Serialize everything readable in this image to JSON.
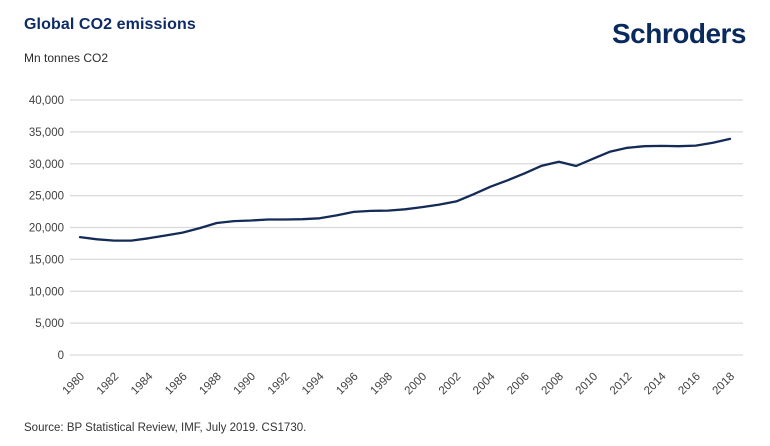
{
  "header": {
    "title": "Global CO2 emissions",
    "subtitle": "Mn tonnes CO2",
    "logo_text": "Schroders"
  },
  "footer": {
    "source": "Source: BP Statistical Review, IMF, July 2019. CS1730."
  },
  "colors": {
    "line": "#142b57",
    "grid": "#d9d9d9",
    "tick_text": "#3f3f3f",
    "title_navy": "#0d2b67",
    "logo_navy": "#0a2a5e"
  },
  "chart_data": {
    "type": "line",
    "title": "Global CO2 emissions",
    "ylabel": "Mn tonnes CO2",
    "xlabel": "",
    "ylim": [
      0,
      40000
    ],
    "ytick_step": 5000,
    "ytick_labels": [
      "0",
      "5,000",
      "10,000",
      "15,000",
      "20,000",
      "25,000",
      "30,000",
      "35,000",
      "40,000"
    ],
    "xtick_labels": [
      "1980",
      "1982",
      "1984",
      "1986",
      "1988",
      "1990",
      "1992",
      "1994",
      "1996",
      "1998",
      "2000",
      "2002",
      "2004",
      "2006",
      "2008",
      "2010",
      "2012",
      "2014",
      "2016",
      "2018"
    ],
    "grid": "horizontal",
    "legend": "none",
    "x": [
      1980,
      1981,
      1982,
      1983,
      1984,
      1985,
      1986,
      1987,
      1988,
      1989,
      1990,
      1991,
      1992,
      1993,
      1994,
      1995,
      1996,
      1997,
      1998,
      1999,
      2000,
      2001,
      2002,
      2003,
      2004,
      2005,
      2006,
      2007,
      2008,
      2009,
      2010,
      2011,
      2012,
      2013,
      2014,
      2015,
      2016,
      2017,
      2018
    ],
    "series": [
      {
        "name": "Global CO2 emissions (Mn tonnes)",
        "values": [
          18500,
          18150,
          17950,
          17950,
          18300,
          18750,
          19200,
          19900,
          20700,
          21000,
          21100,
          21250,
          21250,
          21300,
          21450,
          21900,
          22450,
          22600,
          22650,
          22850,
          23200,
          23600,
          24100,
          25200,
          26400,
          27400,
          28500,
          29700,
          30300,
          29650,
          30800,
          31900,
          32500,
          32750,
          32800,
          32750,
          32850,
          33300,
          33900
        ]
      }
    ]
  }
}
